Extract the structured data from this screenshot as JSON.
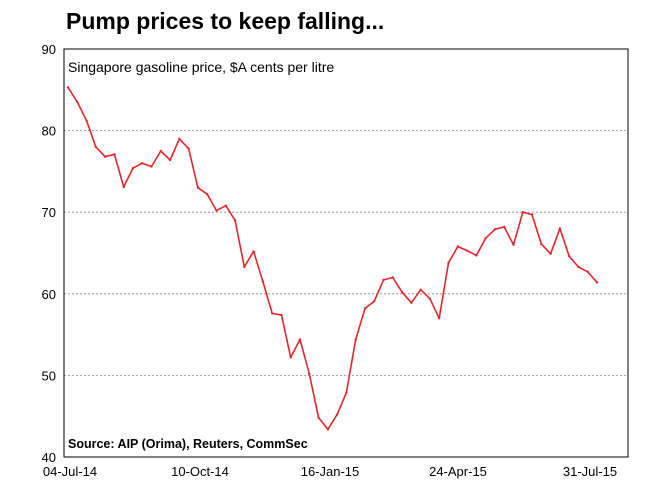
{
  "chart_data": {
    "type": "line",
    "title": "Pump prices to keep falling...",
    "subtitle": "Singapore gasoline price, $A cents per litre",
    "source": "Source: AIP (Orima), Reuters, CommSec",
    "xlabel": "",
    "ylabel": "",
    "ylim": [
      40,
      90
    ],
    "yticks": [
      "40",
      "50",
      "60",
      "70",
      "80",
      "90"
    ],
    "xtick_labels": [
      "04-Jul-14",
      "10-Oct-14",
      "16-Jan-15",
      "24-Apr-15",
      "31-Jul-15"
    ],
    "grid": "horizontal dashed",
    "line_color": "#e3262c",
    "series": [
      {
        "name": "",
        "values": [
          85.3,
          83.5,
          81.2,
          78.0,
          76.8,
          77.1,
          73.1,
          75.4,
          76.0,
          75.6,
          77.5,
          76.4,
          79.0,
          77.8,
          73.0,
          72.2,
          70.2,
          70.8,
          69.0,
          63.3,
          65.2,
          61.5,
          57.6,
          57.4,
          52.2,
          54.4,
          50.2,
          44.8,
          43.4,
          45.2,
          47.9,
          54.4,
          58.2,
          59.1,
          61.7,
          62.0,
          60.2,
          58.9,
          60.5,
          59.4,
          57.0,
          63.8,
          65.8,
          65.3,
          64.7,
          66.8,
          67.9,
          68.2,
          66.0,
          70.0,
          69.7,
          66.1,
          64.9,
          68.0,
          64.6,
          63.3,
          62.7,
          61.4
        ]
      }
    ]
  }
}
